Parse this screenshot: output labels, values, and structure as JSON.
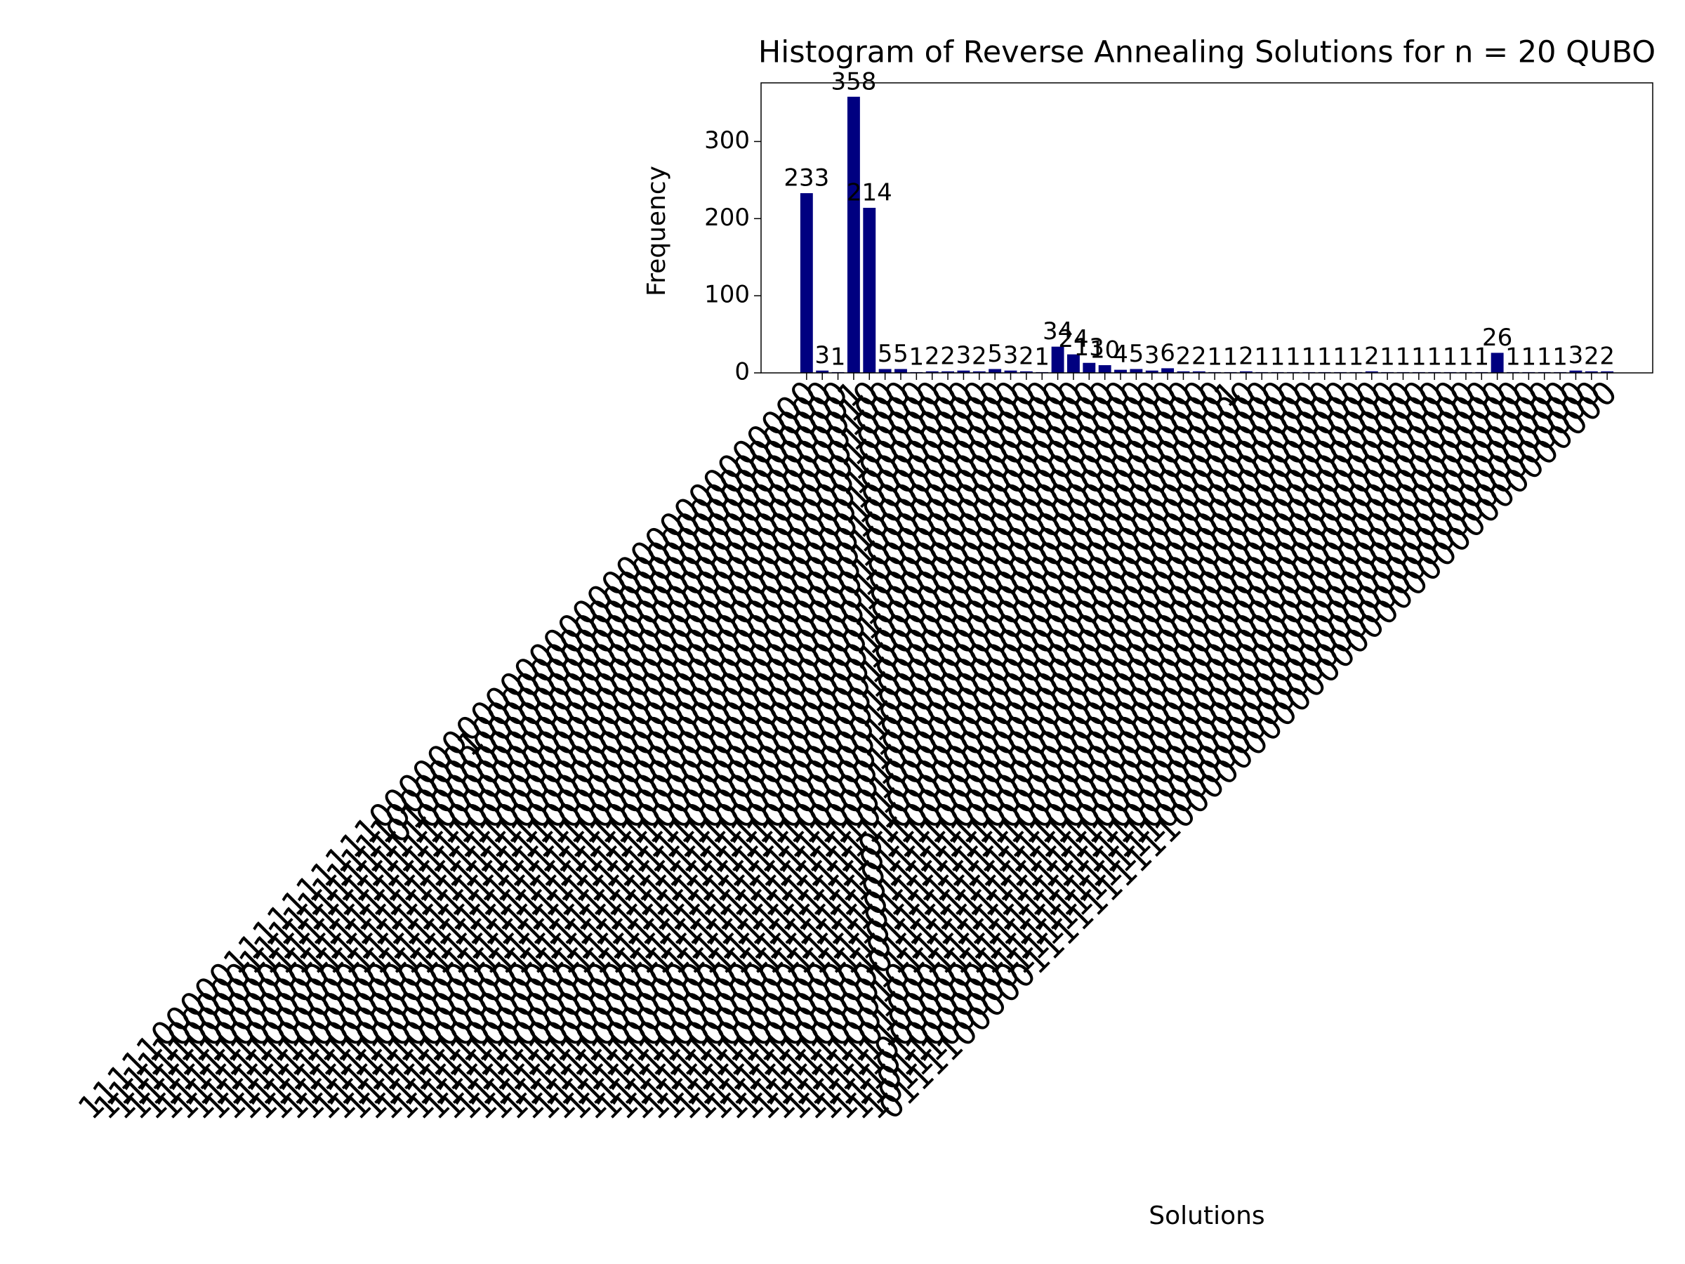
{
  "chart_data": {
    "type": "bar",
    "title": "Histogram of Reverse Annealing Solutions for n = 20 QUBO",
    "xlabel": "Solutions",
    "ylabel": "Frequency",
    "color": "#000080",
    "ylim": [
      0,
      376
    ],
    "yticks": [
      0,
      100,
      200,
      300
    ],
    "values": [
      233,
      3,
      1,
      358,
      214,
      5,
      5,
      1,
      2,
      2,
      3,
      2,
      5,
      3,
      2,
      1,
      34,
      24,
      13,
      10,
      4,
      5,
      3,
      6,
      2,
      2,
      1,
      1,
      2,
      1,
      1,
      1,
      1,
      1,
      1,
      1,
      2,
      1,
      1,
      1,
      1,
      1,
      1,
      1,
      26,
      1,
      1,
      1,
      1,
      3,
      2,
      2
    ],
    "categories": [
      "11111000001111111111000000000000000000000000000000",
      "11111000001111111111000001000000000000000000000000",
      "11111000001111111110100000000000000000000000000000",
      "11111000001111111111000000000000000000000000000001",
      "11111000001111111111000000000000000000000000000010",
      "11111000001111111111000000000000000000000000000100",
      "11111000001111111111000000000000000000000000001000",
      "11111000001111111111000000000000000000000000010000",
      "11111000001111111111000000000000000000000000100000",
      "11111000001111111111000000000000000000000001000000",
      "11111000001111111111000000000000000000000010000000",
      "11111000001111111111000000000000000000000100000000",
      "11111000001111111111000000000000000000001000000000",
      "11111000001111111111000000000000000000010000000000",
      "11111000001111111111000000000000000000100000000000",
      "11111000001111111111000000000000000001000000000000",
      "11111000001111111111000000000000000010000000000000",
      "11111000001111111111000000000000000100000000000000",
      "11111000001111111111000000000000001000000000000000",
      "11111000001111111111000000000000010000000000000000",
      "11111000001111111111000000000000100000000000000000",
      "11111000001111111111000000000001000000000000000000",
      "11111000001111111111000000000010000000000000000000",
      "11111000001111111111000000000100000000000000000000",
      "11111000001111111111000000001000000000000000000000",
      "11111000001111111111000000010000000000000000000000",
      "11111000001111111111000000100000000000000000000000",
      "11111000001111111111000001000000000000000000000001",
      "11111000001111111111000010000000000000000000000000",
      "11111000001111111111000100000000000000000000000000",
      "11111000001111111111001000000000000000000000000000",
      "11111000001111111111010000000000000000000000000000",
      "11111000001111111111100000000000000000000000000000",
      "11111000001111111101000000000000000000000000000000",
      "11111000001111111011000000000000000000000000000000",
      "11111000001111110111000000000000000000000000000000",
      "11111000001111101111000000000000000000000000000000",
      "11111000001111011111000000000000000000000000000000",
      "11111000001110111111000000000000000000000000000000",
      "11111000001101111111000000000000000000000000000000",
      "11111000001011111111000000000000000000000000000000",
      "11111000000111111111000000000000000000000000000000",
      "11111000011111111111000000000000000000000000000000",
      "11111000101111111111000000000000000000000000000000",
      "11111001001111111111000000000000000000000000000000",
      "11111010001111111111000000000000000000000000000000",
      "11111100001111111111000000000000000000000000000000",
      "11110000001111111111000000000000000000000000000000",
      "11101000001111111111000000000000000000000000000000",
      "11011000001111111111000000000000000000000000000000",
      "10111000001111111111000000000000000000000000000000",
      "01111000001111111111000000000000000000000000000000"
    ]
  }
}
